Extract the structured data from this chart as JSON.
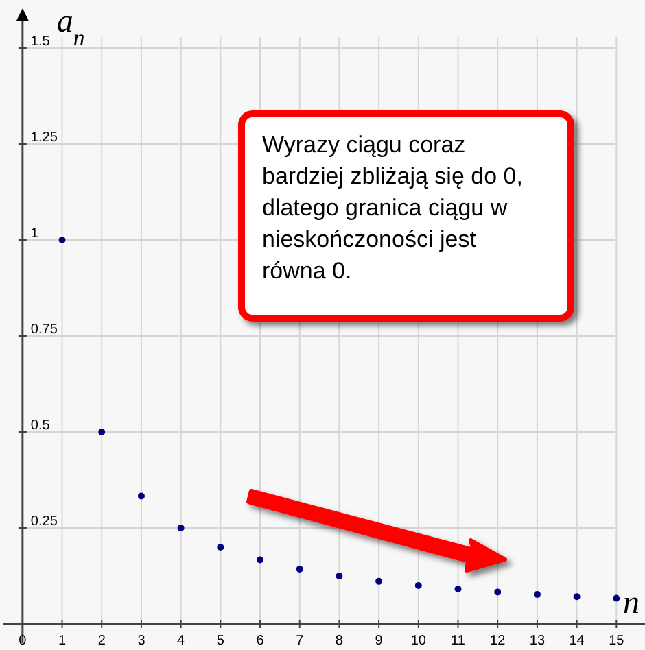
{
  "chart_data": {
    "type": "scatter",
    "xlabel": "n",
    "ylabel": "a$_{n}$",
    "x": [
      1,
      2,
      3,
      4,
      5,
      6,
      7,
      8,
      9,
      10,
      11,
      12,
      13,
      14,
      15
    ],
    "series": [
      {
        "color": "#00007f",
        "values": [
          1,
          0.5,
          0.333,
          0.25,
          0.2,
          0.167,
          0.143,
          0.125,
          0.111,
          0.1,
          0.091,
          0.083,
          0.077,
          0.071,
          0.067
        ]
      }
    ],
    "xlim": [
      -0.5,
      16
    ],
    "ylim": [
      -0.05,
      1.6
    ],
    "xticks": [
      0,
      1,
      2,
      3,
      4,
      5,
      6,
      7,
      8,
      9,
      10,
      11,
      12,
      13,
      14,
      15
    ],
    "yticks": [
      0.25,
      0.5,
      0.75,
      1,
      1.25,
      1.5
    ],
    "grid": true,
    "marker": "circle",
    "annotations": [
      "Wyrazy ciągu coraz bardziej zbliżają się do 0, dlatego granica ciągu w nieskończoności jest równa 0."
    ]
  }
}
